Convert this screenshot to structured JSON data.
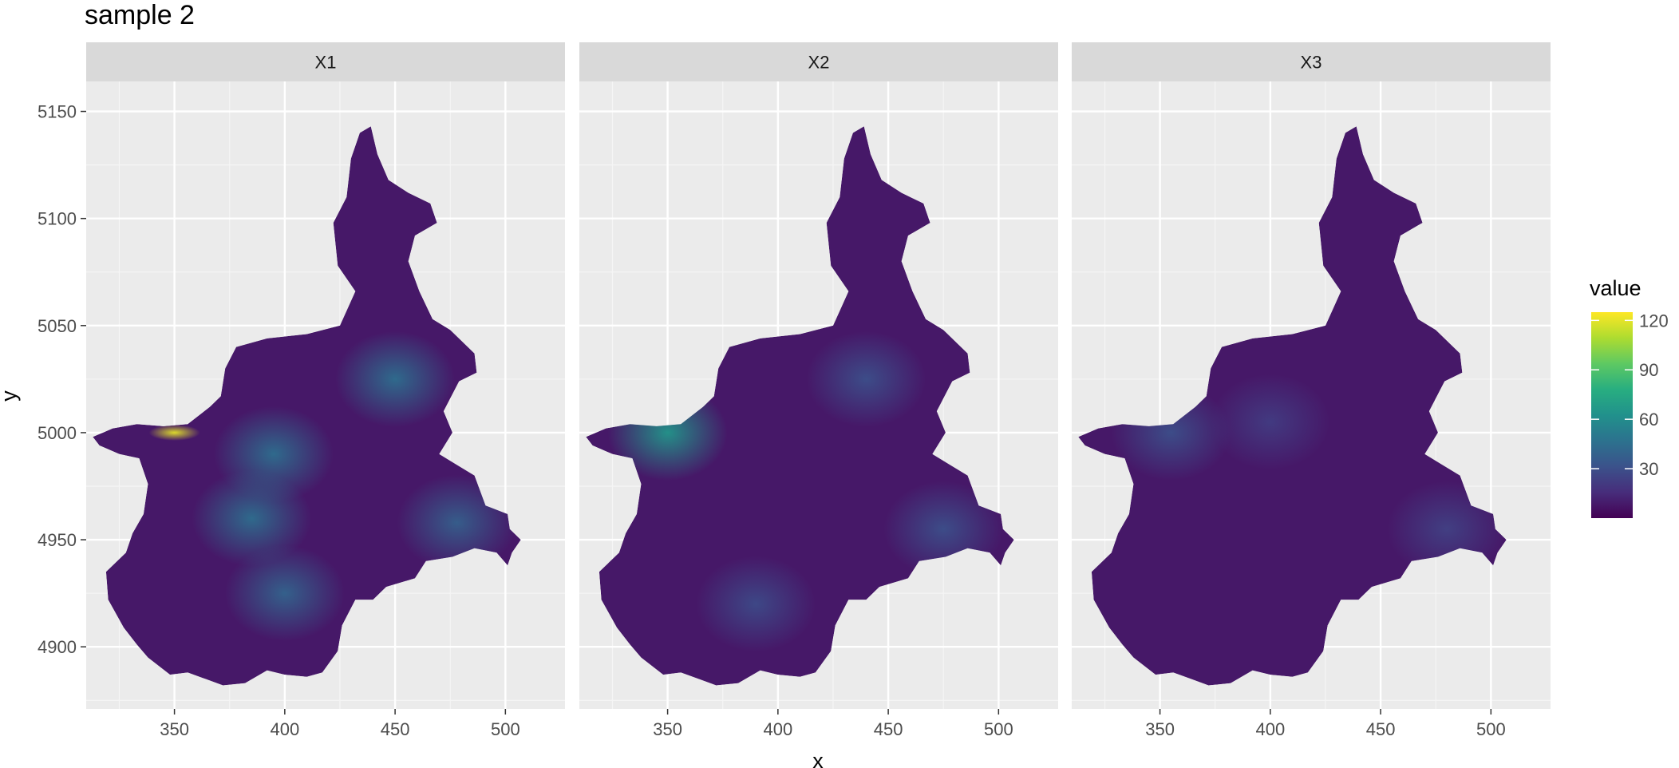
{
  "chart_data": {
    "type": "heatmap",
    "title": "sample 2",
    "xlabel": "x",
    "ylabel": "y",
    "facets": [
      "X1",
      "X2",
      "X3"
    ],
    "x_ticks": [
      350,
      400,
      450,
      500
    ],
    "y_ticks": [
      4900,
      4950,
      5000,
      5050,
      5100,
      5150
    ],
    "xlim": [
      310,
      527
    ],
    "ylim": [
      4871,
      5164
    ],
    "grid": true,
    "legend": {
      "title": "value",
      "placement": "right",
      "ticks": [
        30,
        60,
        90,
        120
      ],
      "range": [
        0,
        125
      ],
      "colormap": "viridis"
    },
    "hotspots": [
      {
        "facet": "X1",
        "x": 350,
        "y": 5000,
        "value": 120
      },
      {
        "facet": "X1",
        "x": 395,
        "y": 4990,
        "value": 45
      },
      {
        "facet": "X1",
        "x": 385,
        "y": 4960,
        "value": 45
      },
      {
        "facet": "X1",
        "x": 450,
        "y": 5025,
        "value": 45
      },
      {
        "facet": "X1",
        "x": 478,
        "y": 4958,
        "value": 38
      },
      {
        "facet": "X1",
        "x": 400,
        "y": 4925,
        "value": 40
      },
      {
        "facet": "X2",
        "x": 350,
        "y": 5000,
        "value": 65
      },
      {
        "facet": "X2",
        "x": 440,
        "y": 5025,
        "value": 30
      },
      {
        "facet": "X2",
        "x": 475,
        "y": 4955,
        "value": 30
      },
      {
        "facet": "X2",
        "x": 390,
        "y": 4920,
        "value": 28
      },
      {
        "facet": "X3",
        "x": 355,
        "y": 5000,
        "value": 30
      },
      {
        "facet": "X3",
        "x": 400,
        "y": 5005,
        "value": 22
      },
      {
        "facet": "X3",
        "x": 480,
        "y": 4955,
        "value": 24
      }
    ]
  }
}
